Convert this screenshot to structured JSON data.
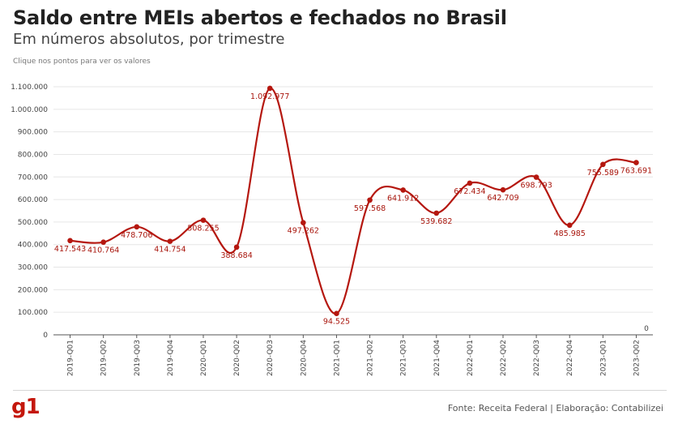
{
  "header": {
    "title": "Saldo entre MEIs abertos e fechados no Brasil",
    "subtitle": "Em números absolutos, por trimestre",
    "hint": "Clique nos pontos para ver os valores"
  },
  "footer": {
    "logo": "g1",
    "source": "Fonte: Receita Federal | Elaboração: Contabilizei"
  },
  "colors": {
    "line": "#b5170f",
    "grid": "#e6e6e6",
    "axis": "#555555",
    "brand": "#c4170c"
  },
  "chart_data": {
    "type": "line",
    "categories": [
      "2019-Q01",
      "2019-Q02",
      "2019-Q03",
      "2019-Q04",
      "2020-Q01",
      "2020-Q02",
      "2020-Q03",
      "2020-Q04",
      "2021-Q01",
      "2021-Q02",
      "2021-Q03",
      "2021-Q04",
      "2022-Q01",
      "2022-Q02",
      "2022-Q03",
      "2022-Q04",
      "2023-Q01",
      "2023-Q02"
    ],
    "values": [
      417543,
      410764,
      478706,
      414754,
      508255,
      388684,
      1092977,
      497262,
      94525,
      597568,
      641912,
      539682,
      672434,
      642709,
      698793,
      485985,
      755589,
      763691
    ],
    "labels": [
      "417.543",
      "410.764",
      "478.706",
      "414.754",
      "508.255",
      "388.684",
      "1.092.977",
      "497.262",
      "94.525",
      "597.568",
      "641.912",
      "539.682",
      "672.434",
      "642.709",
      "698.793",
      "485.985",
      "755.589",
      "763.691"
    ],
    "y_ticks": [
      0,
      100000,
      200000,
      300000,
      400000,
      500000,
      600000,
      700000,
      800000,
      900000,
      1000000,
      1100000
    ],
    "y_tick_labels": [
      "0",
      "100.000",
      "200.000",
      "300.000",
      "400.000",
      "500.000",
      "600.000",
      "700.000",
      "800.000",
      "900.000",
      "1.000.000",
      "1.100.000"
    ],
    "ylim": [
      0,
      1100000
    ],
    "extra_label": "0",
    "grid": true,
    "smooth": true
  }
}
